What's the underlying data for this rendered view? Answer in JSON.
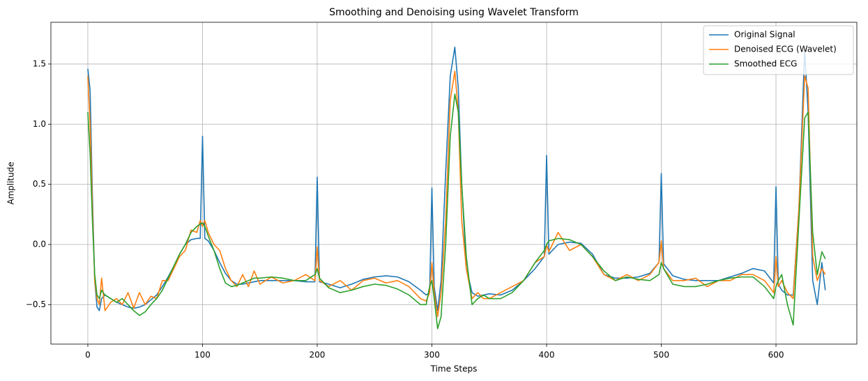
{
  "chart_data": {
    "type": "line",
    "title": "Smoothing and Denoising using Wavelet Transform",
    "x_label": "Time Steps",
    "y_label": "Amplitude",
    "x": [
      0,
      2,
      4,
      6,
      8,
      10,
      12,
      15,
      20,
      25,
      30,
      35,
      40,
      45,
      50,
      55,
      60,
      65,
      70,
      75,
      80,
      85,
      90,
      95,
      98,
      100,
      102,
      105,
      110,
      115,
      120,
      125,
      130,
      135,
      140,
      145,
      150,
      160,
      170,
      180,
      190,
      198,
      200,
      202,
      210,
      220,
      230,
      240,
      250,
      260,
      270,
      280,
      290,
      295,
      298,
      300,
      302,
      305,
      308,
      312,
      316,
      320,
      323,
      326,
      330,
      335,
      340,
      345,
      350,
      360,
      370,
      380,
      390,
      398,
      400,
      402,
      410,
      420,
      430,
      440,
      450,
      460,
      470,
      480,
      490,
      498,
      500,
      502,
      510,
      520,
      530,
      540,
      550,
      560,
      570,
      580,
      590,
      598,
      600,
      602,
      605,
      610,
      615,
      620,
      625,
      628,
      632,
      636,
      640,
      643
    ],
    "series": [
      {
        "name": "Original Signal",
        "color": "#1f77b4",
        "values": [
          1.46,
          1.28,
          0.4,
          -0.3,
          -0.52,
          -0.55,
          -0.45,
          -0.42,
          -0.45,
          -0.48,
          -0.5,
          -0.52,
          -0.53,
          -0.52,
          -0.5,
          -0.46,
          -0.42,
          -0.35,
          -0.27,
          -0.18,
          -0.08,
          0.0,
          0.04,
          0.05,
          0.05,
          0.9,
          0.05,
          0.03,
          -0.05,
          -0.15,
          -0.24,
          -0.3,
          -0.33,
          -0.33,
          -0.32,
          -0.31,
          -0.3,
          -0.3,
          -0.3,
          -0.3,
          -0.31,
          -0.31,
          0.56,
          -0.31,
          -0.33,
          -0.36,
          -0.33,
          -0.29,
          -0.27,
          -0.26,
          -0.27,
          -0.31,
          -0.38,
          -0.42,
          -0.4,
          0.47,
          -0.35,
          -0.55,
          -0.3,
          0.6,
          1.4,
          1.64,
          1.3,
          0.5,
          -0.2,
          -0.4,
          -0.43,
          -0.42,
          -0.41,
          -0.42,
          -0.38,
          -0.3,
          -0.2,
          -0.1,
          0.74,
          -0.08,
          0.0,
          0.02,
          0.01,
          -0.08,
          -0.25,
          -0.28,
          -0.28,
          -0.27,
          -0.24,
          -0.15,
          0.59,
          -0.16,
          -0.26,
          -0.29,
          -0.3,
          -0.3,
          -0.3,
          -0.27,
          -0.24,
          -0.2,
          -0.22,
          -0.32,
          0.48,
          -0.33,
          -0.38,
          -0.42,
          -0.42,
          0.3,
          1.62,
          1.1,
          -0.3,
          -0.5,
          -0.15,
          -0.38
        ]
      },
      {
        "name": "Denoised ECG (Wavelet)",
        "color": "#ff7f0e",
        "values": [
          1.4,
          1.0,
          0.3,
          -0.3,
          -0.45,
          -0.5,
          -0.28,
          -0.55,
          -0.48,
          -0.45,
          -0.5,
          -0.4,
          -0.53,
          -0.4,
          -0.5,
          -0.43,
          -0.45,
          -0.3,
          -0.3,
          -0.2,
          -0.1,
          -0.05,
          0.12,
          0.1,
          0.2,
          0.15,
          0.2,
          0.1,
          0.0,
          -0.05,
          -0.2,
          -0.3,
          -0.35,
          -0.25,
          -0.35,
          -0.22,
          -0.33,
          -0.27,
          -0.32,
          -0.3,
          -0.25,
          -0.3,
          -0.02,
          -0.3,
          -0.35,
          -0.3,
          -0.38,
          -0.3,
          -0.28,
          -0.32,
          -0.3,
          -0.35,
          -0.45,
          -0.47,
          -0.4,
          -0.15,
          -0.4,
          -0.6,
          -0.4,
          0.2,
          1.2,
          1.44,
          1.1,
          0.2,
          -0.2,
          -0.45,
          -0.4,
          -0.45,
          -0.45,
          -0.4,
          -0.35,
          -0.3,
          -0.15,
          -0.1,
          0.0,
          -0.06,
          0.1,
          -0.05,
          0.0,
          -0.1,
          -0.25,
          -0.3,
          -0.25,
          -0.3,
          -0.25,
          -0.15,
          0.03,
          -0.2,
          -0.3,
          -0.3,
          -0.28,
          -0.35,
          -0.3,
          -0.3,
          -0.25,
          -0.25,
          -0.3,
          -0.4,
          -0.1,
          -0.35,
          -0.3,
          -0.4,
          -0.45,
          0.3,
          1.4,
          1.3,
          -0.1,
          -0.3,
          -0.2,
          -0.25
        ]
      },
      {
        "name": "Smoothed ECG",
        "color": "#2ca02c",
        "values": [
          1.1,
          0.75,
          0.2,
          -0.25,
          -0.42,
          -0.45,
          -0.38,
          -0.42,
          -0.45,
          -0.48,
          -0.45,
          -0.5,
          -0.55,
          -0.59,
          -0.56,
          -0.5,
          -0.45,
          -0.38,
          -0.28,
          -0.18,
          -0.08,
          0.0,
          0.1,
          0.15,
          0.17,
          0.18,
          0.15,
          0.07,
          -0.05,
          -0.2,
          -0.32,
          -0.35,
          -0.34,
          -0.32,
          -0.3,
          -0.28,
          -0.28,
          -0.27,
          -0.28,
          -0.3,
          -0.3,
          -0.25,
          -0.2,
          -0.28,
          -0.36,
          -0.4,
          -0.38,
          -0.35,
          -0.33,
          -0.34,
          -0.37,
          -0.42,
          -0.5,
          -0.5,
          -0.35,
          -0.3,
          -0.45,
          -0.7,
          -0.6,
          0.0,
          0.9,
          1.25,
          1.1,
          0.5,
          -0.1,
          -0.5,
          -0.45,
          -0.42,
          -0.45,
          -0.45,
          -0.4,
          -0.3,
          -0.15,
          -0.05,
          0.0,
          0.03,
          0.05,
          0.04,
          0.0,
          -0.1,
          -0.22,
          -0.3,
          -0.27,
          -0.29,
          -0.3,
          -0.25,
          -0.15,
          -0.2,
          -0.33,
          -0.35,
          -0.35,
          -0.33,
          -0.3,
          -0.28,
          -0.27,
          -0.27,
          -0.35,
          -0.45,
          -0.35,
          -0.3,
          -0.25,
          -0.5,
          -0.67,
          0.2,
          1.05,
          1.1,
          0.1,
          -0.25,
          -0.06,
          -0.12
        ]
      }
    ],
    "xlim": [
      -32.2,
      670.5
    ],
    "ylim": [
      -0.828,
      1.847
    ],
    "xticks": [
      0,
      100,
      200,
      300,
      400,
      500,
      600
    ],
    "yticks": [
      {
        "value": -0.5,
        "label": "−0.5"
      },
      {
        "value": 0,
        "label": "0.0"
      },
      {
        "value": 0.5,
        "label": "0.5"
      },
      {
        "value": 1,
        "label": "1.0"
      },
      {
        "value": 1.5,
        "label": "1.5"
      }
    ],
    "grid": true,
    "legend": "upper right"
  }
}
